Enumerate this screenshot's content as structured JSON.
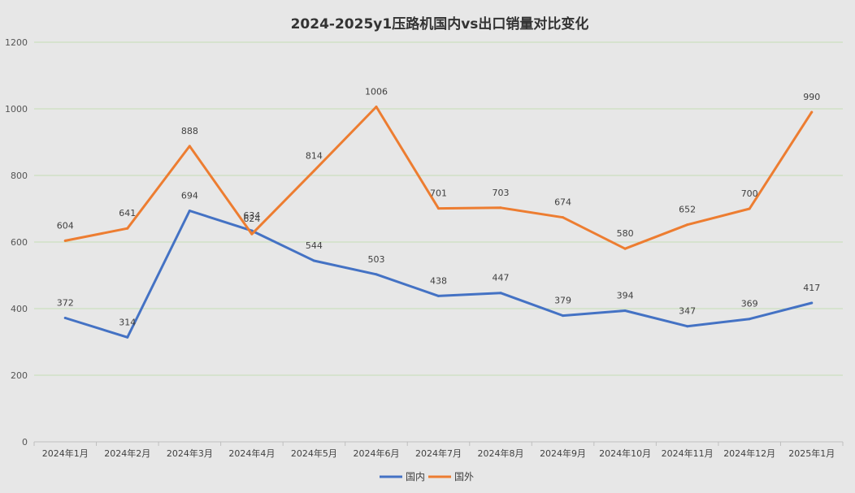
{
  "chart_data": {
    "type": "line",
    "title": "2024-2025y1压路机国内vs出口销量对比变化",
    "xlabel": "",
    "ylabel": "",
    "categories": [
      "2024年1月",
      "2024年2月",
      "2024年3月",
      "2024年4月",
      "2024年5月",
      "2024年6月",
      "2024年7月",
      "2024年8月",
      "2024年9月",
      "2024年10月",
      "2024年11月",
      "2024年12月",
      "2025年1月"
    ],
    "ylim": [
      0,
      1200
    ],
    "yticks": [
      0,
      200,
      400,
      600,
      800,
      1000,
      1200
    ],
    "grid": true,
    "legend_position": "bottom",
    "series": [
      {
        "name": "国内",
        "color": "#4472c4",
        "values": [
          372,
          314,
          694,
          634,
          544,
          503,
          438,
          447,
          379,
          394,
          347,
          369,
          417
        ]
      },
      {
        "name": "国外",
        "color": "#ed7d31",
        "values": [
          604,
          641,
          888,
          624,
          814,
          1006,
          701,
          703,
          674,
          580,
          652,
          700,
          990
        ]
      }
    ]
  },
  "colors": {
    "background": "#e7e7e7",
    "gridline": "#c6dcb4",
    "axis": "#bfbfbf"
  }
}
